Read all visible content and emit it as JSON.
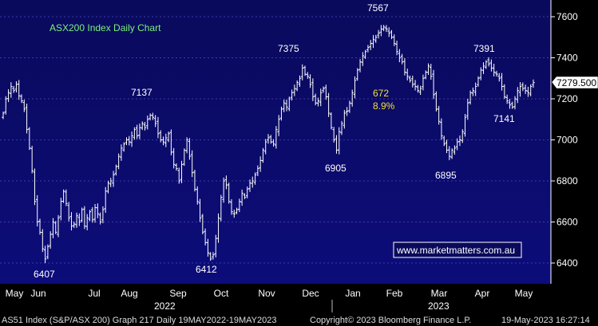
{
  "chart_data": {
    "type": "ohlc",
    "title": "ASX200 Index Daily Chart",
    "y_ticks": [
      6400,
      6600,
      6800,
      7000,
      7200,
      7400,
      7600
    ],
    "ylim": [
      6325,
      7720
    ],
    "last_price": "7279.500",
    "month_labels": [
      "May",
      "Jun",
      "Jul",
      "Aug",
      "Sep",
      "Oct",
      "Nov",
      "Dec",
      "Jan",
      "Feb",
      "Mar",
      "Apr",
      "May"
    ],
    "year_labels": [
      "2022",
      "2023"
    ],
    "annotations": [
      {
        "text": "7567",
        "value": 7567
      },
      {
        "text": "7375",
        "value": 7375
      },
      {
        "text": "7391",
        "value": 7391
      },
      {
        "text": "7137",
        "value": 7137
      },
      {
        "text": "7141",
        "value": 7141
      },
      {
        "text": "6905",
        "value": 6905
      },
      {
        "text": "6895",
        "value": 6895
      },
      {
        "text": "6407",
        "value": 6407
      },
      {
        "text": "6412",
        "value": 6412
      }
    ],
    "move_points": "672",
    "move_percent": "8.9%",
    "watermark": "www.marketmatters.com.au",
    "closes": [
      7130,
      7200,
      7230,
      7260,
      7240,
      7270,
      7215,
      7190,
      7150,
      7050,
      6960,
      6850,
      6700,
      6600,
      6550,
      6470,
      6420,
      6480,
      6540,
      6600,
      6550,
      6620,
      6700,
      6750,
      6690,
      6620,
      6580,
      6590,
      6630,
      6600,
      6660,
      6580,
      6620,
      6650,
      6610,
      6670,
      6640,
      6600,
      6660,
      6750,
      6790,
      6800,
      6830,
      6870,
      6920,
      6960,
      6980,
      7000,
      6990,
      7020,
      7050,
      7020,
      7060,
      7080,
      7060,
      7100,
      7120,
      7110,
      7080,
      7030,
      7000,
      6990,
      7010,
      7030,
      6940,
      6880,
      6860,
      6800,
      6880,
      6950,
      7000,
      6920,
      6840,
      6760,
      6700,
      6620,
      6550,
      6500,
      6450,
      6420,
      6440,
      6520,
      6620,
      6720,
      6800,
      6780,
      6700,
      6650,
      6640,
      6660,
      6700,
      6740,
      6720,
      6760,
      6790,
      6800,
      6830,
      6860,
      6900,
      6950,
      6990,
      7010,
      6990,
      6980,
      7050,
      7100,
      7150,
      7180,
      7160,
      7200,
      7230,
      7250,
      7280,
      7300,
      7350,
      7320,
      7310,
      7270,
      7210,
      7180,
      7190,
      7230,
      7250,
      7210,
      7130,
      7060,
      7000,
      6950,
      7040,
      7080,
      7130,
      7140,
      7180,
      7230,
      7290,
      7340,
      7380,
      7410,
      7430,
      7450,
      7470,
      7490,
      7500,
      7520,
      7540,
      7550,
      7540,
      7520,
      7500,
      7470,
      7430,
      7400,
      7380,
      7330,
      7310,
      7290,
      7270,
      7260,
      7240,
      7250,
      7300,
      7330,
      7360,
      7310,
      7220,
      7150,
      7090,
      7020,
      6980,
      6950,
      6920,
      6950,
      6960,
      6990,
      7000,
      7040,
      7110,
      7180,
      7230,
      7240,
      7260,
      7300,
      7340,
      7360,
      7380,
      7370,
      7350,
      7330,
      7320,
      7300,
      7260,
      7210,
      7190,
      7170,
      7160,
      7200,
      7240,
      7260,
      7250,
      7240,
      7230,
      7260,
      7279
    ]
  }
}
